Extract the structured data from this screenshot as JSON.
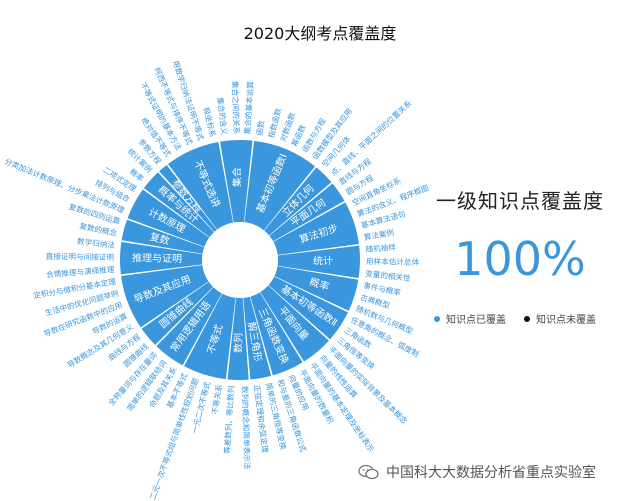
{
  "title": "2020大纲考点覆盖度",
  "coverage": {
    "heading": "一级知识点覆盖度",
    "value": "100%"
  },
  "legend": [
    {
      "label": "知识点已覆盖",
      "color": "#3a96dd"
    },
    {
      "label": "知识点未覆盖",
      "color": "#111111"
    }
  ],
  "watermark": "中国科大大数据分析省重点实验室",
  "colors": {
    "covered": "#3a96dd",
    "inner_text": "#ffffff",
    "outer_text": "#3a96dd"
  },
  "chart_data": {
    "type": "sunburst",
    "title": "2020大纲考点覆盖度",
    "categories": [
      {
        "name": "集合",
        "covered": true,
        "children": [
          "集合的含义",
          "集合之间的关系",
          "集合的基本运算"
        ]
      },
      {
        "name": "基本初等函数Ⅰ",
        "covered": true,
        "children": [
          "函数",
          "指数函数",
          "对数函数",
          "幂函数",
          "函数与方程",
          "函数模型及其应用"
        ]
      },
      {
        "name": "立体几何",
        "covered": true,
        "children": [
          "空间几何体",
          "点、直线、平面之间的位置关系"
        ]
      },
      {
        "name": "平面几何",
        "covered": true,
        "children": [
          "直线与方程",
          "圆与方程"
        ]
      },
      {
        "name": "算法初步",
        "covered": true,
        "children": [
          "空间直角坐标系",
          "算法的含义、程序框图",
          "基本算法语句",
          "算法案例"
        ]
      },
      {
        "name": "统计",
        "covered": true,
        "children": [
          "随机抽样",
          "用样本估计总体",
          "变量的相关性"
        ]
      },
      {
        "name": "概率",
        "covered": true,
        "children": [
          "事件与概率",
          "古典概型",
          "随机数与几何概型"
        ]
      },
      {
        "name": "基本初等函数Ⅱ",
        "covered": true,
        "children": [
          "任意角的概念、弧度制",
          "三角函数",
          "三角恒等变换"
        ]
      },
      {
        "name": "平面向量",
        "covered": true,
        "children": [
          "平面向量的实际背景及基本概念",
          "向量的线性运算",
          "平面向量的基本定理及坐标表示"
        ]
      },
      {
        "name": "三角函数变换",
        "covered": true,
        "children": [
          "平面向量的数量积",
          "向量的应用",
          "和与差的三角函数公式"
        ]
      },
      {
        "name": "解三角形",
        "covered": true,
        "children": [
          "简单的三角恒等变换",
          "正弦定理和余弦定理"
        ]
      },
      {
        "name": "数列",
        "covered": true,
        "children": [
          "数列的概念和简单表示法",
          "等差数列、等比数列"
        ]
      },
      {
        "name": "不等式",
        "covered": true,
        "children": [
          "不等关系",
          "一元二次不等式",
          "二元一次不等式组与简单线性规划问题",
          "基本不等式"
        ]
      },
      {
        "name": "常用逻辑用语",
        "covered": true,
        "children": [
          "命题及其关系",
          "简单的逻辑联结词",
          "全称量词与存在量词"
        ]
      },
      {
        "name": "圆锥曲线",
        "covered": true,
        "children": [
          "圆锥曲线",
          "曲线与方程"
        ]
      },
      {
        "name": "导数及其应用",
        "covered": true,
        "children": [
          "导数概念及其几何意义",
          "导数的运算",
          "导数在研究函数中的应用",
          "生活中的优化问题举例",
          "定积分与微积分基本定理"
        ]
      },
      {
        "name": "推理与证明",
        "covered": true,
        "children": [
          "合情推理与演绎推理",
          "直接证明与间接证明",
          "数学归纳法"
        ]
      },
      {
        "name": "复数",
        "covered": true,
        "children": [
          "复数的概念",
          "复数的四则运算"
        ]
      },
      {
        "name": "计数原理",
        "covered": true,
        "children": [
          "分类加法计数原理、分步乘法计数原理",
          "排列与组合",
          "二项式定理"
        ]
      },
      {
        "name": "概率与统计",
        "covered": true,
        "children": [
          "概率",
          "统计案例"
        ]
      },
      {
        "name": "参数方程",
        "covered": true,
        "children": [
          "参数方程"
        ]
      },
      {
        "name": "不等式选讲",
        "covered": true,
        "children": [
          "绝对值不等式",
          "不等式证明的基本方法",
          "柯西不等式与排序不等式",
          "用数学归纳法证明不等式",
          "极坐标系"
        ]
      }
    ]
  }
}
